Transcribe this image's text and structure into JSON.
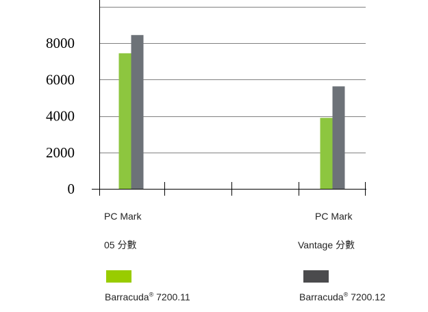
{
  "chart_data": {
    "type": "bar",
    "categories": [
      {
        "line1": "PC Mark",
        "line2": "05  分數"
      },
      {
        "line1": "PC Mark",
        "line2": "Vantage  分數"
      }
    ],
    "series": [
      {
        "name": "Barracuda® 7200.11",
        "label_main": "Barracuda",
        "label_reg": "®",
        "label_model": " 7200.11",
        "color": "#8dc63f",
        "values": [
          7450,
          3900
        ]
      },
      {
        "name": "Barracuda® 7200.12",
        "label_main": "Barracuda",
        "label_reg": "®",
        "label_model": " 7200.12",
        "color": "#6d7278",
        "values": [
          8450,
          5630
        ]
      }
    ],
    "legend_swatch_colors": [
      "#99cc00",
      "#4b4b4d"
    ],
    "yticks": [
      "0",
      "2000",
      "4000",
      "6000",
      "8000"
    ],
    "ylim": [
      0,
      10000
    ],
    "grid": true
  }
}
